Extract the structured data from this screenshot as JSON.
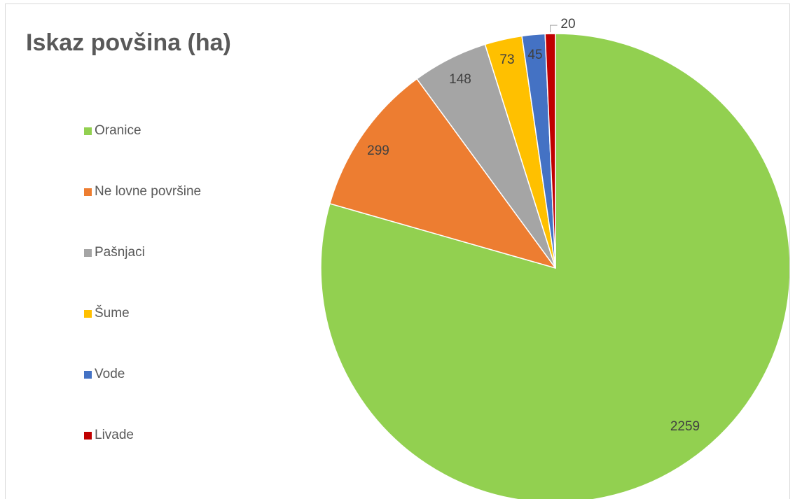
{
  "chart_data": {
    "type": "pie",
    "title": "Iskaz povšina (ha)",
    "categories": [
      "Oranice",
      "Ne lovne površine",
      "Pašnjaci",
      "Šume",
      "Vode",
      "Livade"
    ],
    "values": [
      2259,
      299,
      148,
      73,
      45,
      20
    ],
    "value_labels": [
      "2259",
      "299",
      "148",
      "73",
      "45",
      "20"
    ],
    "colors": [
      "#92d050",
      "#ed7d31",
      "#a5a5a5",
      "#ffc000",
      "#4472c4",
      "#c00000"
    ],
    "start_angle_deg": 0,
    "direction": "clockwise",
    "legend_position": "left"
  }
}
